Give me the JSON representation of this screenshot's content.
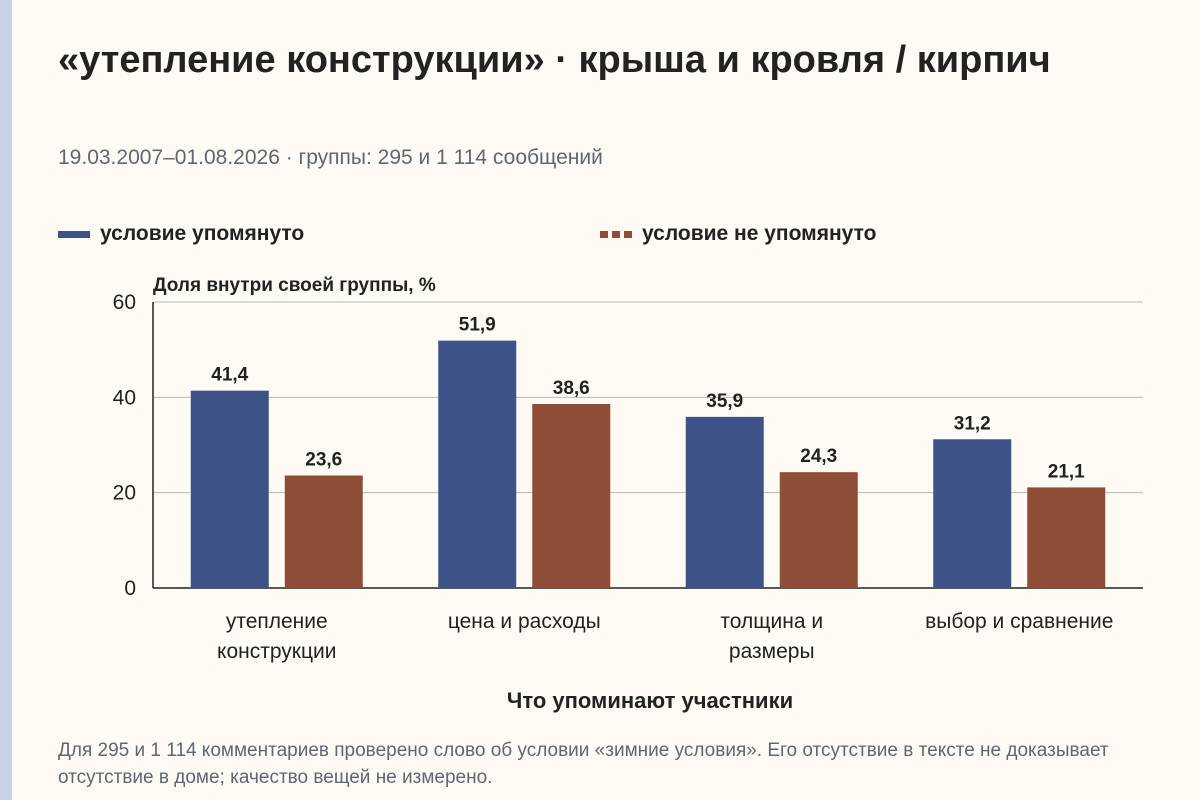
{
  "title": "«утепление конструкции» · крыша и кровля / кирпич",
  "subtitle": "19.03.2007–01.08.2026 · группы: 295 и 1 114 сообщений",
  "legend": {
    "items": [
      {
        "label": "условие упомянуто",
        "color": "#3d5388",
        "style": "solid"
      },
      {
        "label": "условие не упомянуто",
        "color": "#8e4e36",
        "style": "dashed"
      }
    ]
  },
  "footnote": "Для 295 и 1 114 комментариев проверено слово об условии «зимние условия». Его отсутствие в тексте не доказывает отсутствие в доме; качество вещей не измерено.",
  "chart_data": {
    "type": "bar",
    "title": "«утепление конструкции» · крыша и кровля / кирпич",
    "subtitle": "19.03.2007–01.08.2026 · группы: 295 и 1 114 сообщений",
    "xlabel": "Что упоминают участники",
    "ylabel": "Доля внутри своей группы, %",
    "categories": [
      [
        "утепление",
        "конструкции"
      ],
      [
        "цена и расходы"
      ],
      [
        "толщина и",
        "размеры"
      ],
      [
        "выбор и сравнение"
      ]
    ],
    "series": [
      {
        "name": "условие упомянуто",
        "color": "#3d5388",
        "values": [
          41.4,
          51.9,
          35.9,
          31.2
        ],
        "labels": [
          "41,4",
          "51,9",
          "35,9",
          "31,2"
        ]
      },
      {
        "name": "условие не упомянуто",
        "color": "#8e4e36",
        "values": [
          23.6,
          38.6,
          24.3,
          21.1
        ],
        "labels": [
          "23,6",
          "38,6",
          "24,3",
          "21,1"
        ]
      }
    ],
    "ylim": [
      0,
      60
    ],
    "yticks": [
      0,
      20,
      40,
      60
    ],
    "grid": true,
    "legend_position": "top"
  }
}
